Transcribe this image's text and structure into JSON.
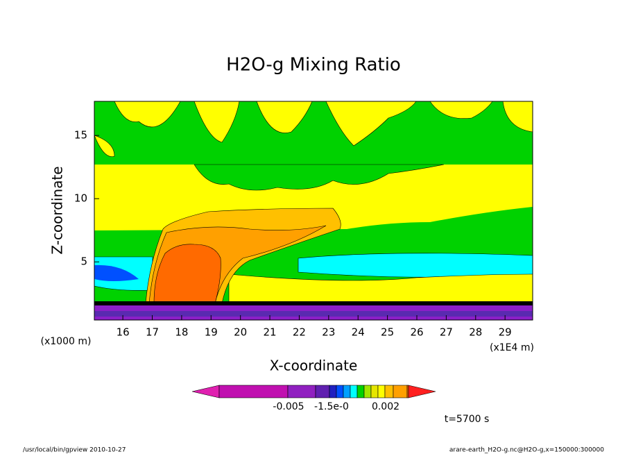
{
  "chart_data": {
    "type": "contour",
    "title": "H2O-g Mixing Ratio",
    "x_label": "X-coordinate",
    "y_label": "Z-coordinate",
    "x_unit": "(x1E4 m)",
    "y_unit": "(x1000 m)",
    "xlim": [
      15.03,
      29.94
    ],
    "ylim": [
      0.4,
      17.7
    ],
    "xticks": [
      16,
      17,
      18,
      19,
      20,
      21,
      22,
      23,
      24,
      25,
      26,
      27,
      28,
      29
    ],
    "yticks": [
      5,
      10,
      15
    ],
    "colorbar_labels": [
      "-0.005",
      "-1.5e-0",
      "0.002"
    ],
    "time_label": "t=5700 s",
    "footer_left": "/usr/local/bin/gpview  2010-10-27",
    "footer_right": "arare-earth_H2O-g.nc@H2O-g,x=150000:300000"
  }
}
